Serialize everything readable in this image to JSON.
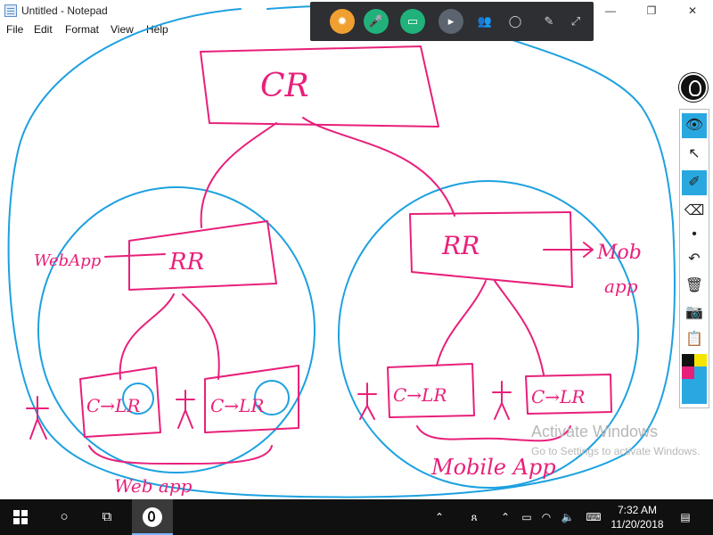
{
  "window": {
    "title": "Untitled - Notepad",
    "controls": {
      "minimize": "—",
      "maximize": "❐",
      "close": "✕"
    }
  },
  "menu": [
    "File",
    "Edit",
    "Format",
    "View",
    "Help"
  ],
  "meeting_toolbar": {
    "buttons": [
      {
        "name": "apps-icon",
        "glyph": "✹",
        "color": "#f0a030"
      },
      {
        "name": "mic-icon",
        "glyph": "🎤",
        "color": "#20b27a"
      },
      {
        "name": "screen-share-icon",
        "glyph": "▭",
        "color": "#20b27a"
      },
      {
        "name": "camera-icon",
        "glyph": "▸",
        "color": "#5c6470"
      },
      {
        "name": "participants-icon",
        "glyph": "👥",
        "color": ""
      },
      {
        "name": "chat-icon",
        "glyph": "◯",
        "color": ""
      },
      {
        "name": "annotate-icon",
        "glyph": "✎",
        "color": ""
      },
      {
        "name": "fullscreen-icon",
        "glyph": "⤢",
        "color": ""
      }
    ]
  },
  "drawing": {
    "cr_label": "CR",
    "left_rr_label": "RR",
    "right_rr_label": "RR",
    "left_client_1": "C→LR",
    "left_client_2": "C→LR",
    "right_client_1": "C→LR",
    "right_client_2": "C→LR",
    "webapp_side_label": "WebApp",
    "webapp_bottom_label": "Web app",
    "mob_label": "Mob",
    "app_label": "app",
    "mobile_label": "Mobile App",
    "colors": {
      "pink": "#e8207a",
      "blue": "#1da1e0"
    }
  },
  "pen_toolbar": {
    "tools": [
      {
        "name": "view-icon",
        "glyph": "👁",
        "active": true
      },
      {
        "name": "pointer-icon",
        "glyph": "↖",
        "active": false
      },
      {
        "name": "highlighter-icon",
        "glyph": "✐",
        "active": true
      },
      {
        "name": "eraser-icon",
        "glyph": "⌫",
        "active": false
      },
      {
        "name": "dot-icon",
        "glyph": "•",
        "active": false
      },
      {
        "name": "undo-icon",
        "glyph": "↶",
        "active": false
      },
      {
        "name": "trash-icon",
        "glyph": "🗑",
        "active": false
      },
      {
        "name": "camera-capture-icon",
        "glyph": "📷",
        "active": false
      },
      {
        "name": "clipboard-icon",
        "glyph": "📋",
        "active": false
      }
    ],
    "swatches": [
      "#111111",
      "#f5e400",
      "#e8207a",
      "#29a8e0"
    ]
  },
  "watermark": {
    "line1": "Activate Windows",
    "line2": "Go to Settings to activate Windows."
  },
  "taskbar": {
    "time": "7:32 AM",
    "date": "11/20/2018"
  }
}
